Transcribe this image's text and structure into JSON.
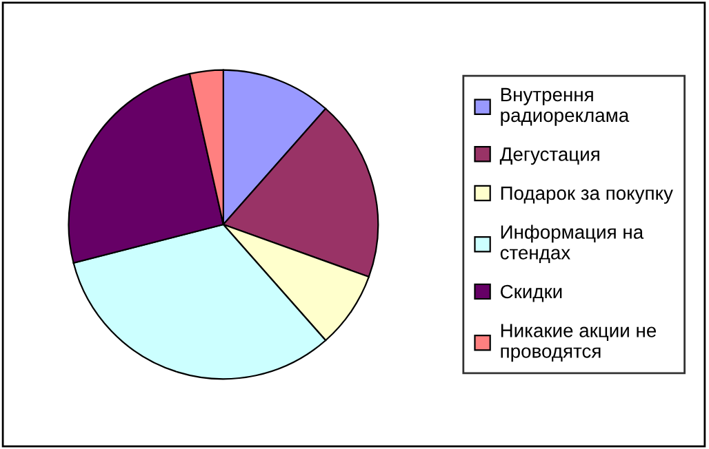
{
  "chart_data": {
    "type": "pie",
    "categories": [
      "Внутрення\nрадиореклама",
      "Дегустация",
      "Подарок за покупку",
      "Информация на\nстендах",
      "Скидки",
      "Никакие акции не\nпроводятся"
    ],
    "values": [
      11.5,
      19,
      8,
      32.5,
      25.5,
      3.5
    ],
    "colors": [
      "#9999ff",
      "#993366",
      "#ffffcc",
      "#ccffff",
      "#660066",
      "#ff8080"
    ],
    "legend": "right"
  }
}
